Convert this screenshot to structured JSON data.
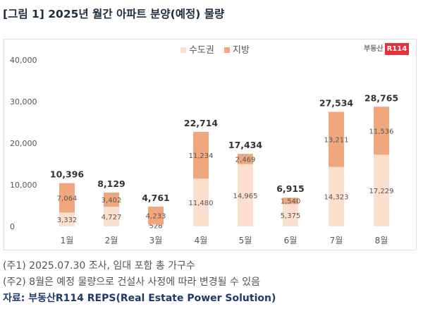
{
  "title": "[그림 1] 2025년 월간 아파트 분양(예정) 물량",
  "logo": {
    "text": "부동산",
    "badge": "R114"
  },
  "notes": [
    "(주1) 2025.07.30 조사, 임대 포함 총 가구수",
    "(주2) 8월은 예정 물량으로 건설사 사정에 따라 변경될 수 있음"
  ],
  "source": "자료: 부동산R114 REPS(Real Estate Power Solution)",
  "chart_data": {
    "type": "bar",
    "stacked": true,
    "title": "",
    "xlabel": "",
    "ylabel": "",
    "categories": [
      "1월",
      "2월",
      "3월",
      "4월",
      "5월",
      "6월",
      "7월",
      "8월"
    ],
    "ylim": [
      0,
      40000
    ],
    "yticks": [
      0,
      10000,
      20000,
      30000,
      40000
    ],
    "ytick_labels": [
      "0",
      "10,000",
      "20,000",
      "30,000",
      "40,000"
    ],
    "legend": "top-center",
    "grid": false,
    "series": [
      {
        "name": "수도권",
        "color": "#fbdfcf",
        "values": [
          3332,
          4727,
          528,
          11480,
          14965,
          5375,
          14323,
          17229
        ],
        "labels": [
          "3,332",
          "4,727",
          "528",
          "11,480",
          "14,965",
          "5,375",
          "14,323",
          "17,229"
        ]
      },
      {
        "name": "지방",
        "color": "#f0a77e",
        "values": [
          7064,
          3402,
          4233,
          11234,
          2469,
          1540,
          13211,
          11536
        ],
        "labels": [
          "7,064",
          "3,402",
          "4,233",
          "11,234",
          "2,469",
          "1,540",
          "13,211",
          "11,536"
        ]
      }
    ],
    "totals": [
      "10,396",
      "8,129",
      "4,761",
      "22,714",
      "17,434",
      "6,915",
      "27,534",
      "28,765"
    ]
  }
}
